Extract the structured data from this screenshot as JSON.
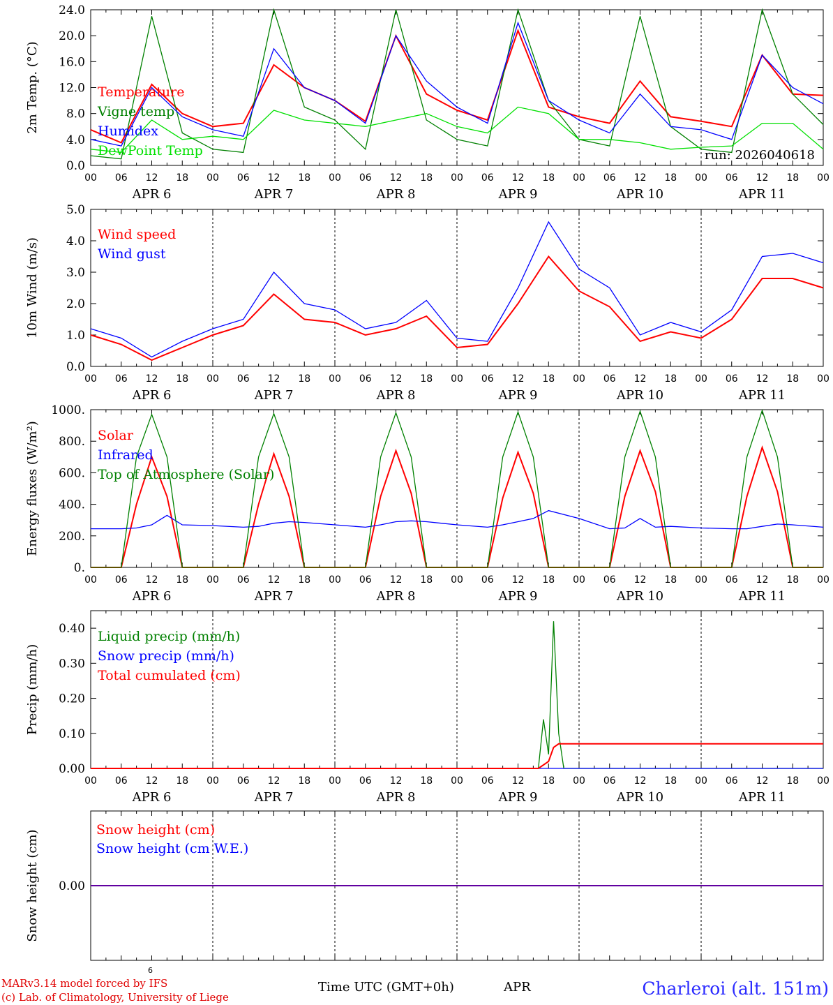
{
  "footer": {
    "credit_line1": "MARv3.14 model forced by IFS",
    "credit_line2": "(c) Lab. of Climatology, University of Liege",
    "xaxis_label": "Time UTC (GMT+0h)",
    "month": "APR",
    "day_superscript": "6",
    "station": "Charleroi (alt. 151m)"
  },
  "days": [
    "APR  6",
    "APR  7",
    "APR  8",
    "APR  9",
    "APR 10",
    "APR 11"
  ],
  "hour_ticks": [
    "00",
    "06",
    "12",
    "18",
    "00",
    "06",
    "12",
    "18",
    "00",
    "06",
    "12",
    "18",
    "00",
    "06",
    "12",
    "18",
    "00",
    "06",
    "12",
    "18",
    "00",
    "06",
    "12",
    "18",
    "00"
  ],
  "colors": {
    "red": "#ff0000",
    "green": "#008000",
    "blue": "#0000ff",
    "lightgreen": "#00e000"
  },
  "chart_data": [
    {
      "type": "line",
      "ylabel": "2m Temp. (°C)",
      "ylim": [
        0,
        24
      ],
      "yticks": [
        "0.0",
        "4.0",
        "8.0",
        "12.0",
        "16.0",
        "20.0",
        "24.0"
      ],
      "run_label": "run: 2026040618",
      "x": [
        0,
        6,
        12,
        18,
        24,
        30,
        36,
        42,
        48,
        54,
        60,
        66,
        72,
        78,
        84,
        90,
        96,
        102,
        108,
        114,
        120,
        126,
        132,
        138,
        144
      ],
      "series": [
        {
          "name": "Temperature",
          "color": "red",
          "values": [
            5.5,
            3.5,
            12.5,
            8,
            6,
            6.5,
            15.5,
            12,
            10,
            6.8,
            20,
            11,
            8.5,
            7,
            20.8,
            9,
            7.5,
            6.5,
            13,
            7.5,
            6.8,
            6,
            17,
            11,
            10.8
          ]
        },
        {
          "name": "Vigne temp",
          "color": "green",
          "values": [
            1.5,
            1,
            23,
            5,
            2.5,
            2,
            24,
            9,
            7,
            2.5,
            24,
            7,
            4,
            3,
            24,
            10,
            4,
            3,
            23,
            6,
            2.5,
            2,
            24,
            11,
            6.3
          ]
        },
        {
          "name": "Humidex",
          "color": "blue",
          "values": [
            4,
            3,
            12,
            7.5,
            5.5,
            4.5,
            18,
            12,
            10,
            6.5,
            20,
            13,
            9,
            6.5,
            22,
            10,
            7,
            5,
            11,
            6,
            5.5,
            4,
            17,
            12,
            9.5
          ]
        },
        {
          "name": "DewPoint Temp",
          "color": "lightgreen",
          "values": [
            2.5,
            2,
            7,
            4,
            4.5,
            4,
            8.5,
            7,
            6.5,
            6,
            7,
            8,
            6,
            5,
            9,
            8,
            4,
            4,
            3.5,
            2.5,
            2.8,
            3,
            6.5,
            6.5,
            2.5
          ]
        }
      ]
    },
    {
      "type": "line",
      "ylabel": "10m Wind (m/s)",
      "ylim": [
        0,
        5
      ],
      "yticks": [
        "0.0",
        "1.0",
        "2.0",
        "3.0",
        "4.0",
        "5.0"
      ],
      "x": [
        0,
        6,
        12,
        18,
        24,
        30,
        36,
        42,
        48,
        54,
        60,
        66,
        72,
        78,
        84,
        90,
        96,
        102,
        108,
        114,
        120,
        126,
        132,
        138,
        144
      ],
      "series": [
        {
          "name": "Wind speed",
          "color": "red",
          "values": [
            1,
            0.7,
            0.2,
            0.6,
            1,
            1.3,
            2.3,
            1.5,
            1.4,
            1,
            1.2,
            1.6,
            0.6,
            0.7,
            2,
            3.5,
            2.4,
            1.9,
            0.8,
            1.1,
            0.9,
            1.5,
            2.8,
            2.8,
            2.5
          ]
        },
        {
          "name": "Wind gust",
          "color": "blue",
          "values": [
            1.2,
            0.9,
            0.3,
            0.8,
            1.2,
            1.5,
            3,
            2,
            1.8,
            1.2,
            1.4,
            2.1,
            0.9,
            0.8,
            2.5,
            4.6,
            3.1,
            2.5,
            1,
            1.4,
            1.1,
            1.8,
            3.5,
            3.6,
            3.3
          ]
        }
      ]
    },
    {
      "type": "line",
      "ylabel": "Energy fluxes (W/m²)",
      "ylim": [
        0,
        1000
      ],
      "yticks": [
        "0.",
        "200.",
        "400.",
        "600.",
        "800.",
        "1000."
      ],
      "x": [
        0,
        6,
        9,
        12,
        15,
        18,
        24,
        30,
        33,
        36,
        39,
        42,
        48,
        54,
        57,
        60,
        63,
        66,
        72,
        78,
        81,
        84,
        87,
        90,
        96,
        102,
        105,
        108,
        111,
        114,
        120,
        126,
        129,
        132,
        135,
        138,
        144
      ],
      "series": [
        {
          "name": "Solar",
          "color": "red",
          "values": [
            0,
            0,
            400,
            700,
            450,
            0,
            0,
            0,
            400,
            720,
            450,
            0,
            0,
            0,
            450,
            740,
            470,
            0,
            0,
            0,
            440,
            730,
            470,
            0,
            0,
            0,
            450,
            740,
            480,
            0,
            0,
            0,
            450,
            760,
            480,
            0,
            0
          ]
        },
        {
          "name": "Infrared",
          "color": "blue",
          "values": [
            245,
            245,
            250,
            270,
            330,
            270,
            265,
            255,
            260,
            280,
            290,
            285,
            270,
            255,
            270,
            290,
            295,
            290,
            270,
            255,
            270,
            290,
            310,
            360,
            310,
            245,
            250,
            310,
            255,
            260,
            250,
            245,
            245,
            260,
            275,
            270,
            255
          ]
        },
        {
          "name": "Top of Atmosphere (Solar)",
          "color": "green",
          "values": [
            0,
            0,
            700,
            970,
            700,
            0,
            0,
            0,
            700,
            975,
            700,
            0,
            0,
            0,
            700,
            980,
            700,
            0,
            0,
            0,
            700,
            985,
            700,
            0,
            0,
            0,
            700,
            990,
            700,
            0,
            0,
            0,
            700,
            995,
            700,
            0,
            0
          ]
        }
      ]
    },
    {
      "type": "line",
      "ylabel": "Precip (mm/h)",
      "ylim": [
        0,
        0.45
      ],
      "yticks": [
        "0.00",
        "0.10",
        "0.20",
        "0.30",
        "0.40"
      ],
      "x": [
        0,
        88,
        89,
        90,
        91,
        92,
        93,
        94,
        95,
        144
      ],
      "series": [
        {
          "name": "Liquid precip (mm/h)",
          "color": "green",
          "values": [
            0,
            0,
            0.14,
            0.04,
            0.42,
            0.1,
            0,
            0,
            0,
            0
          ]
        },
        {
          "name": "Snow precip (mm/h)",
          "color": "blue",
          "values": [
            0,
            0,
            0,
            0,
            0,
            0,
            0,
            0,
            0,
            0
          ]
        },
        {
          "name": "Total cumulated (cm)",
          "color": "red",
          "values": [
            0,
            0,
            0.01,
            0.02,
            0.06,
            0.07,
            0.07,
            0.07,
            0.07,
            0.07
          ]
        }
      ]
    },
    {
      "type": "line",
      "ylabel": "Snow height (cm)",
      "ylim": [
        -0.5,
        0.5
      ],
      "yticks": [
        "0.00"
      ],
      "x": [
        0,
        144
      ],
      "series": [
        {
          "name": "Snow height (cm)",
          "color": "red",
          "values": [
            0,
            0
          ]
        },
        {
          "name": "Snow height (cm W.E.)",
          "color": "blue",
          "values": [
            0,
            0
          ]
        }
      ]
    }
  ]
}
